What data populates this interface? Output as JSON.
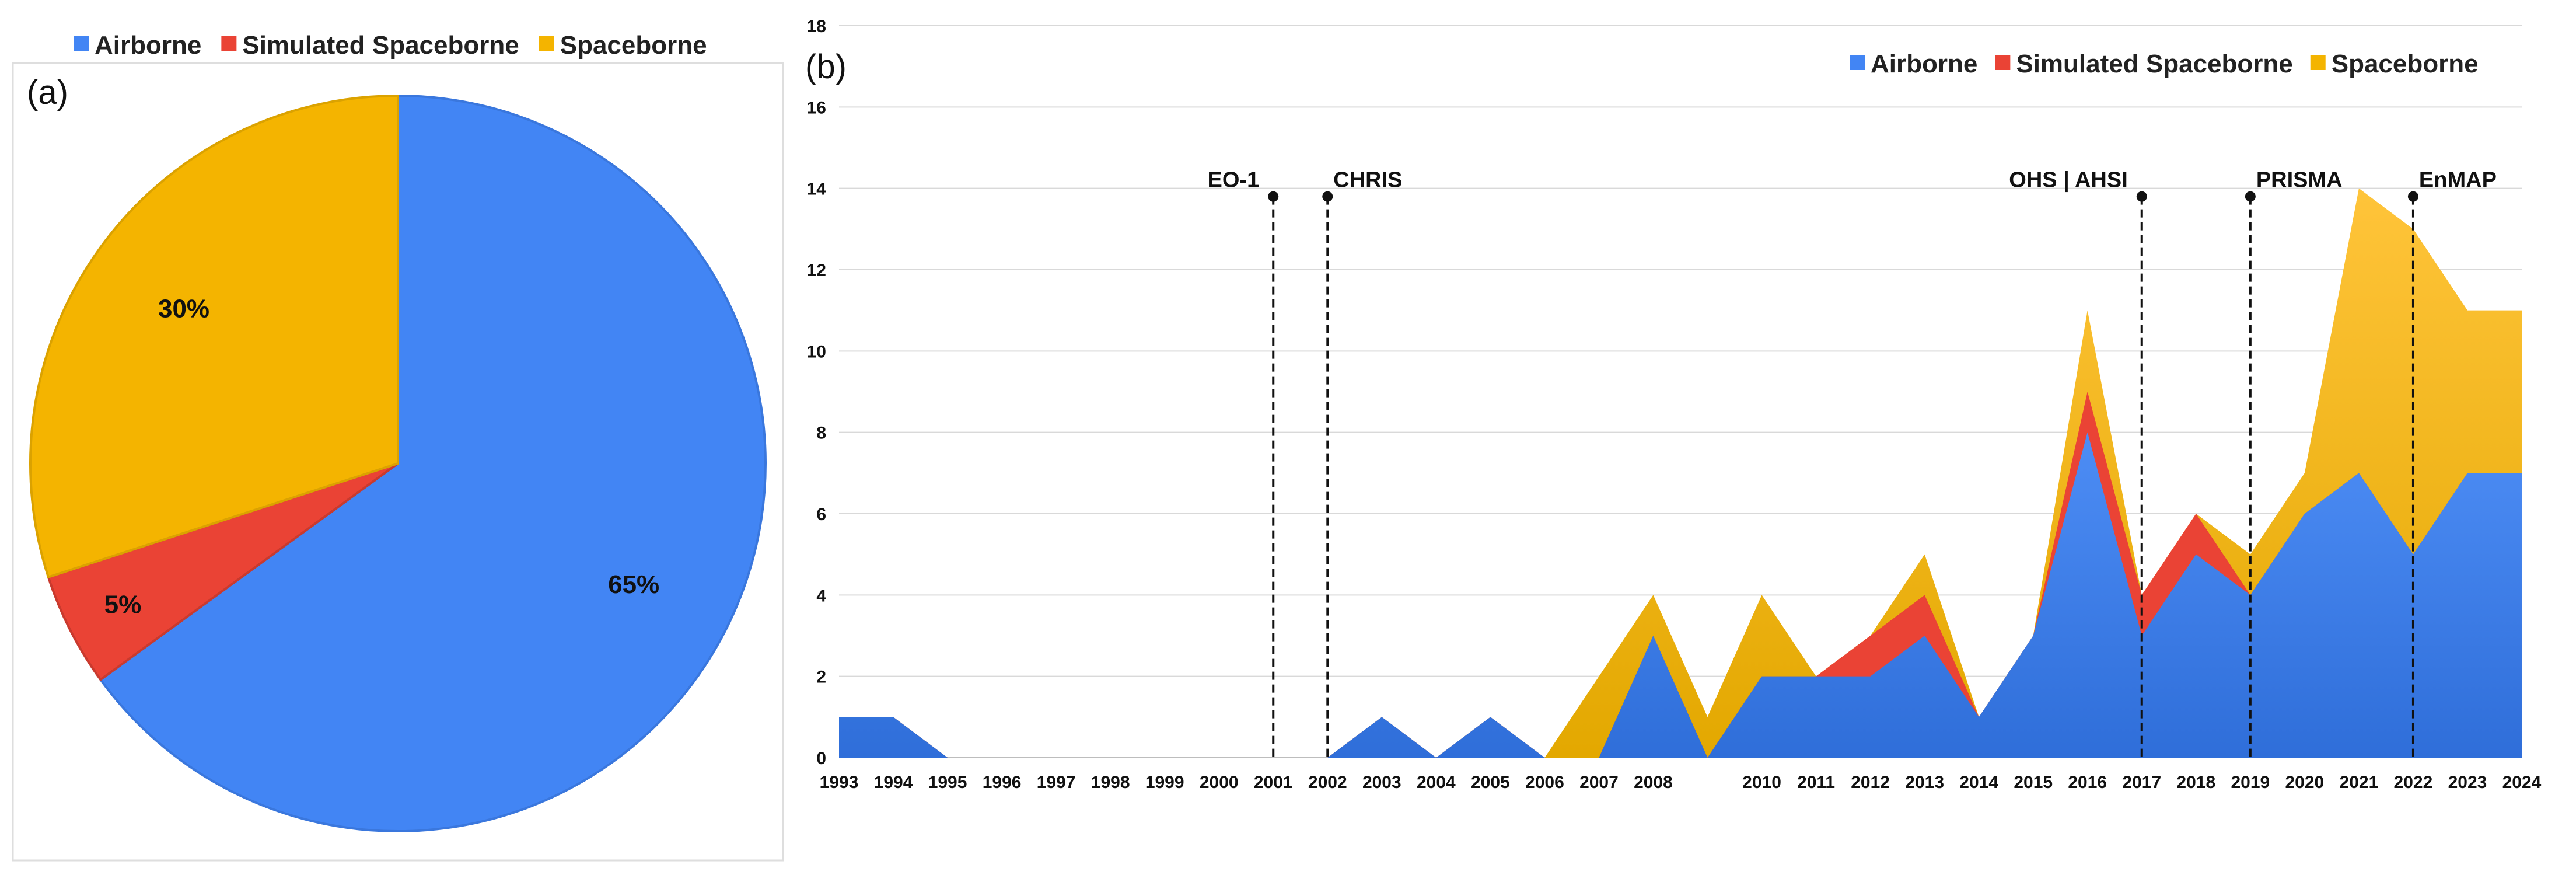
{
  "chart_data": [
    {
      "type": "pie",
      "panel_label": "(a)",
      "legend": {
        "placement": "top",
        "entries": [
          "Airborne",
          "Simulated Spaceborne",
          "Spaceborne"
        ]
      },
      "slices": [
        {
          "name": "Airborne",
          "value": 65,
          "label": "65%",
          "color": "#4285F4"
        },
        {
          "name": "Simulated Spaceborne",
          "value": 5,
          "label": "5%",
          "color": "#EA4335"
        },
        {
          "name": "Spaceborne",
          "value": 30,
          "label": "30%",
          "color": "#F4B400"
        }
      ]
    },
    {
      "type": "area",
      "stacked": true,
      "panel_label": "(b)",
      "legend": {
        "placement": "top-right",
        "entries": [
          "Airborne",
          "Simulated Spaceborne",
          "Spaceborne"
        ]
      },
      "x": [
        1993,
        1994,
        1995,
        1996,
        1997,
        1998,
        1999,
        2000,
        2001,
        2002,
        2003,
        2004,
        2005,
        2006,
        2007,
        2008,
        2009,
        2010,
        2011,
        2012,
        2013,
        2014,
        2015,
        2016,
        2017,
        2018,
        2019,
        2020,
        2021,
        2022,
        2023,
        2024
      ],
      "x_tick_labels": [
        "1993",
        "1994",
        "1995",
        "1996",
        "1997",
        "1998",
        "1999",
        "2000",
        "2001",
        "2002",
        "2003",
        "2004",
        "2005",
        "2006",
        "2007",
        "2008",
        "2010",
        "2011",
        "2012",
        "2013",
        "2014",
        "2015",
        "2016",
        "2017",
        "2018",
        "2019",
        "2020",
        "2021",
        "2022",
        "2023",
        "2024"
      ],
      "ylim": [
        0,
        18
      ],
      "y_ticks": [
        0,
        2,
        4,
        6,
        8,
        10,
        12,
        14,
        16,
        18
      ],
      "grid": true,
      "series": [
        {
          "name": "Airborne",
          "color": "#4285F4",
          "values": [
            1,
            1,
            0,
            0,
            0,
            0,
            0,
            0,
            0,
            0,
            1,
            0,
            1,
            0,
            0,
            3,
            0,
            2,
            2,
            2,
            3,
            1,
            3,
            8,
            3,
            5,
            4,
            6,
            7,
            5,
            7,
            7
          ]
        },
        {
          "name": "Simulated Spaceborne",
          "color": "#EA4335",
          "values": [
            0,
            0,
            0,
            0,
            0,
            0,
            0,
            0,
            0,
            0,
            0,
            0,
            0,
            0,
            0,
            0,
            0,
            0,
            0,
            1,
            1,
            0,
            0,
            1,
            1,
            1,
            0,
            0,
            0,
            0,
            0,
            0
          ]
        },
        {
          "name": "Spaceborne",
          "color": "#F4B400",
          "values": [
            0,
            0,
            0,
            0,
            0,
            0,
            0,
            0,
            0,
            0,
            0,
            0,
            0,
            0,
            2,
            1,
            1,
            2,
            0,
            0,
            1,
            0,
            0,
            2,
            0,
            0,
            1,
            1,
            7,
            8,
            4,
            4
          ]
        }
      ],
      "annotations": [
        {
          "label": "EO-1",
          "x": 2001,
          "y": 14
        },
        {
          "label": "CHRIS",
          "x": 2002,
          "y": 14
        },
        {
          "label": "OHS | AHSI",
          "x": 2017,
          "y": 14
        },
        {
          "label": "PRISMA",
          "x": 2019,
          "y": 14
        },
        {
          "label": "EnMAP",
          "x": 2022,
          "y": 14
        }
      ]
    }
  ]
}
